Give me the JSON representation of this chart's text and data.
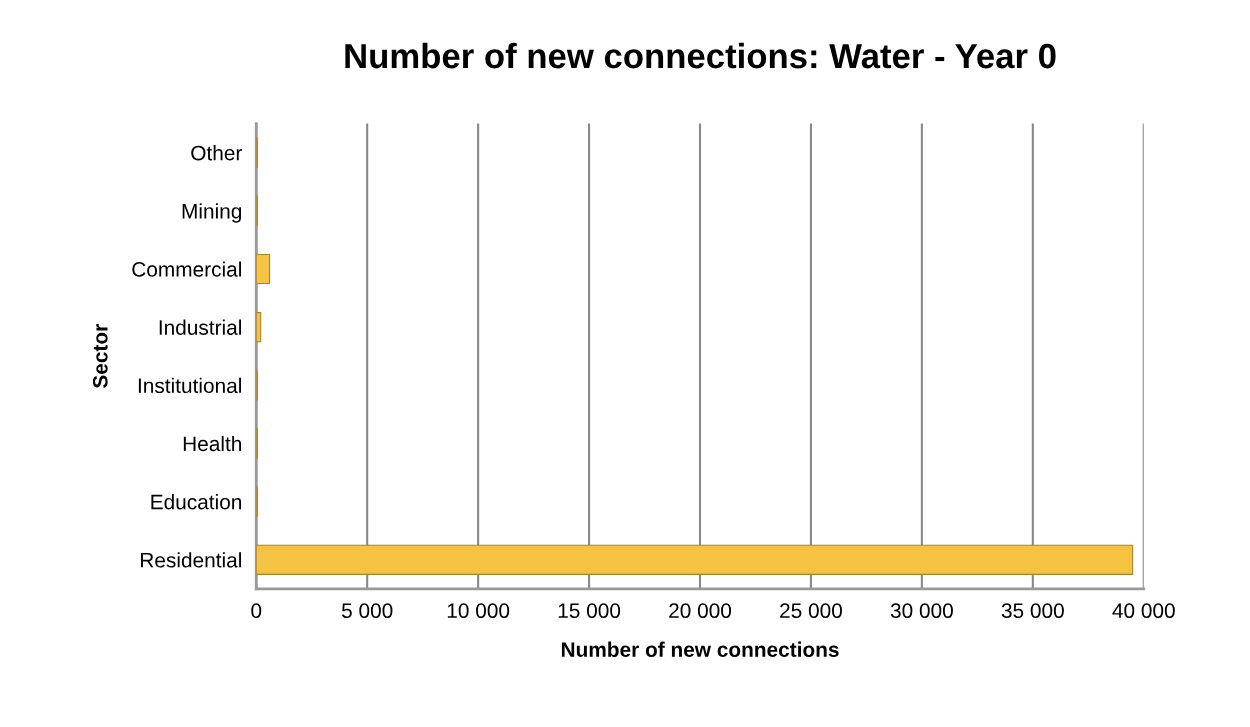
{
  "chart_data": {
    "type": "bar",
    "orientation": "horizontal",
    "title": "Number of new connections: Water - Year 0",
    "xlabel": "Number of new connections",
    "ylabel": "Sector",
    "categories": [
      "Other",
      "Mining",
      "Commercial",
      "Industrial",
      "Institutional",
      "Health",
      "Education",
      "Residential"
    ],
    "values": [
      50,
      50,
      600,
      200,
      50,
      50,
      50,
      39500
    ],
    "color": "#f5c242",
    "xlim": [
      0,
      40000
    ],
    "xticks": [
      {
        "value": 0,
        "label": "0"
      },
      {
        "value": 5000,
        "label": "5 000"
      },
      {
        "value": 10000,
        "label": "10 000"
      },
      {
        "value": 15000,
        "label": "15 000"
      },
      {
        "value": 20000,
        "label": "20 000"
      },
      {
        "value": 25000,
        "label": "25 000"
      },
      {
        "value": 30000,
        "label": "30 000"
      },
      {
        "value": 35000,
        "label": "35 000"
      },
      {
        "value": 40000,
        "label": "40 000"
      }
    ],
    "grid": "x",
    "legend": false
  }
}
